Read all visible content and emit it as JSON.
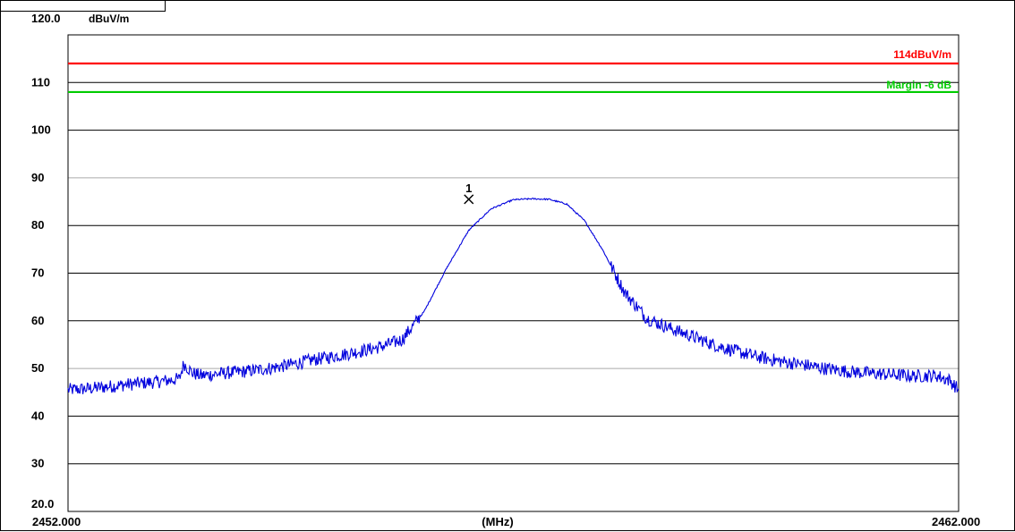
{
  "chart_data": {
    "type": "line",
    "ylabel": "dBuV/m",
    "xlabel": "(MHz)",
    "xlim": [
      2452.0,
      2462.0
    ],
    "ylim": [
      20.0,
      120.0
    ],
    "x_tick_labels": [
      "2452.000",
      "2462.000"
    ],
    "y_tick_labels": [
      "120.0",
      "110",
      "100",
      "90",
      "80",
      "70",
      "60",
      "50",
      "40",
      "30",
      "20.0"
    ],
    "y_ticks": [
      120,
      110,
      100,
      90,
      80,
      70,
      60,
      50,
      40,
      30,
      20
    ],
    "grid": true,
    "series": [
      {
        "color": "#0000dd",
        "x": [
          2452.0,
          2452.25,
          2452.5,
          2452.75,
          2453.0,
          2453.25,
          2453.3,
          2453.4,
          2453.5,
          2453.75,
          2454.0,
          2454.25,
          2454.5,
          2454.75,
          2455.0,
          2455.25,
          2455.5,
          2455.75,
          2456.0,
          2456.25,
          2456.5,
          2456.75,
          2457.0,
          2457.2,
          2457.4,
          2457.6,
          2457.8,
          2458.0,
          2458.25,
          2458.5,
          2458.75,
          2459.0,
          2459.25,
          2459.5,
          2459.75,
          2460.0,
          2460.25,
          2460.5,
          2460.75,
          2461.0,
          2461.25,
          2461.5,
          2461.75,
          2461.9,
          2462.0
        ],
        "y": [
          45.5,
          45.8,
          46.3,
          46.8,
          47.2,
          47.8,
          51.0,
          49.0,
          48.5,
          49.0,
          49.4,
          50.0,
          50.8,
          51.8,
          52.6,
          53.5,
          54.5,
          56.0,
          62.0,
          71.0,
          79.0,
          83.5,
          85.4,
          85.6,
          85.5,
          84.5,
          81.0,
          75.0,
          66.0,
          60.5,
          58.5,
          56.8,
          55.0,
          53.6,
          52.4,
          51.5,
          50.8,
          50.0,
          49.4,
          49.0,
          48.7,
          48.4,
          48.5,
          47.5,
          45.5
        ]
      }
    ],
    "reference_lines": [
      {
        "label": "114dBuV/m",
        "y": 114,
        "color": "#ff0000"
      },
      {
        "label": "Margin -6 dB",
        "y": 108,
        "color": "#00cc00"
      }
    ],
    "markers": [
      {
        "label": "1",
        "x": 2456.5,
        "y": 85.5
      }
    ]
  }
}
